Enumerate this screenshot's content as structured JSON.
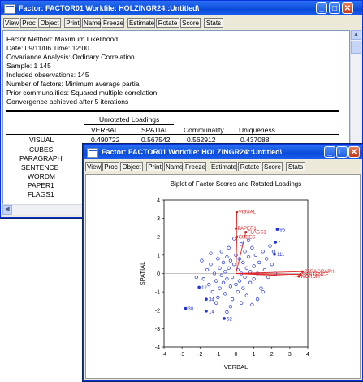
{
  "win1": {
    "title": "Factor: FACTOR01   Workfile: HOLZINGR24::Untitled\\",
    "toolbar": [
      "View",
      "Proc",
      "Object",
      "Print",
      "Name",
      "Freeze",
      "Estimate",
      "Rotate",
      "Score",
      "Stats"
    ],
    "lines": [
      "Factor Method: Maximum Likelihood",
      "Date: 09/11/06   Time: 12:00",
      "Covariance Analysis: Ordinary Correlation",
      "Sample: 1 145",
      "Included observations: 145",
      "Number of factors: Minimum average partial",
      "Prior communalities: Squared multiple correlation",
      "Convergence achieved after 5 iterations"
    ],
    "table": {
      "group_header": "Unrotated Loadings",
      "headers": [
        "VERBAL",
        "SPATIAL",
        "Communality",
        "Uniqueness"
      ],
      "rows": [
        {
          "name": "VISUAL",
          "values": [
            "0.490722",
            "0.567542",
            "0.562912",
            "0.437088"
          ]
        },
        {
          "name": "CUBES",
          "values": []
        },
        {
          "name": "PARAGRAPH",
          "values": []
        },
        {
          "name": "SENTENCE",
          "values": []
        },
        {
          "name": "WORDM",
          "values": []
        },
        {
          "name": "PAPER1",
          "values": []
        },
        {
          "name": "FLAGS1",
          "values": []
        }
      ]
    }
  },
  "win2": {
    "title": "Factor: FACTOR01   Workfile: HOLZINGR24::Untitled\\",
    "toolbar": [
      "View",
      "Proc",
      "Object",
      "Print",
      "Name",
      "Freeze",
      "Estimate",
      "Rotate",
      "Score",
      "Stats"
    ]
  },
  "chart_data": {
    "type": "scatter",
    "title": "Biplot of Factor Scores and Rotated Loadings",
    "xlabel": "VERBAL",
    "ylabel": "SPATIAL",
    "xlim": [
      -4,
      4
    ],
    "ylim": [
      -4,
      4
    ],
    "xticks": [
      "-4",
      "-3",
      "-2",
      "-1",
      "0",
      "1",
      "2",
      "3",
      "4"
    ],
    "yticks": [
      "4",
      "3",
      "2",
      "1",
      "0",
      "-1",
      "-2",
      "-3",
      "-4"
    ],
    "color": "#2233dd",
    "loading_color": "#dd2222",
    "loadings": [
      {
        "name": "VISUAL",
        "x": 0.05,
        "y": 3.35
      },
      {
        "name": "PAPER1",
        "x": 0.0,
        "y": 2.45
      },
      {
        "name": "FLAGS1",
        "x": 0.55,
        "y": 2.25
      },
      {
        "name": "CUBES",
        "x": 0.05,
        "y": 2.0
      },
      {
        "name": "PARAGRAPH",
        "x": 3.7,
        "y": 0.1
      },
      {
        "name": "SENTENCE",
        "x": 3.6,
        "y": -0.05
      },
      {
        "name": "WORDM",
        "x": 3.5,
        "y": -0.15
      }
    ],
    "labeled_points": [
      {
        "label": "96",
        "x": 2.3,
        "y": 2.4
      },
      {
        "label": "7",
        "x": 2.2,
        "y": 1.7
      },
      {
        "label": "111",
        "x": 2.15,
        "y": 1.05
      },
      {
        "label": "12",
        "x": -2.05,
        "y": -0.75
      },
      {
        "label": "34",
        "x": -1.65,
        "y": -1.4
      },
      {
        "label": "38",
        "x": -2.8,
        "y": -1.9
      },
      {
        "label": "14",
        "x": -1.65,
        "y": -2.05
      },
      {
        "label": "52",
        "x": -0.65,
        "y": -2.45
      }
    ],
    "points": [
      [
        -1.8,
        -0.3
      ],
      [
        -1.6,
        0.2
      ],
      [
        -1.5,
        -0.6
      ],
      [
        -1.4,
        0.5
      ],
      [
        -1.3,
        -1.0
      ],
      [
        -1.2,
        0.0
      ],
      [
        -1.1,
        -0.4
      ],
      [
        -1.0,
        0.8
      ],
      [
        -1.0,
        -1.3
      ],
      [
        -0.9,
        0.3
      ],
      [
        -0.9,
        -0.8
      ],
      [
        -0.8,
        1.2
      ],
      [
        -0.8,
        -0.1
      ],
      [
        -0.7,
        0.6
      ],
      [
        -0.7,
        -0.5
      ],
      [
        -0.6,
        -1.1
      ],
      [
        -0.6,
        0.1
      ],
      [
        -0.5,
        0.9
      ],
      [
        -0.5,
        -0.3
      ],
      [
        -0.4,
        1.4
      ],
      [
        -0.4,
        0.3
      ],
      [
        -0.3,
        -0.7
      ],
      [
        -0.3,
        0.7
      ],
      [
        -0.2,
        -0.2
      ],
      [
        -0.2,
        -1.4
      ],
      [
        -0.1,
        0.5
      ],
      [
        0.0,
        -0.6
      ],
      [
        0.0,
        1.0
      ],
      [
        0.1,
        0.2
      ],
      [
        0.1,
        -1.0
      ],
      [
        0.2,
        0.8
      ],
      [
        0.2,
        -0.4
      ],
      [
        0.3,
        1.6
      ],
      [
        0.3,
        0.0
      ],
      [
        0.4,
        -0.8
      ],
      [
        0.4,
        0.6
      ],
      [
        0.5,
        1.2
      ],
      [
        0.5,
        -0.2
      ],
      [
        0.6,
        0.3
      ],
      [
        0.6,
        -1.2
      ],
      [
        0.7,
        0.9
      ],
      [
        0.8,
        -0.5
      ],
      [
        0.8,
        0.1
      ],
      [
        0.9,
        1.4
      ],
      [
        1.0,
        0.4
      ],
      [
        1.0,
        -0.3
      ],
      [
        1.1,
        1.0
      ],
      [
        1.2,
        0.0
      ],
      [
        1.3,
        0.6
      ],
      [
        1.4,
        -0.8
      ],
      [
        1.5,
        1.2
      ],
      [
        1.6,
        0.2
      ],
      [
        1.7,
        0.8
      ],
      [
        1.8,
        -0.2
      ],
      [
        1.9,
        1.5
      ],
      [
        2.0,
        0.5
      ],
      [
        2.1,
        1.2
      ],
      [
        2.2,
        0.0
      ],
      [
        1.2,
        -1.4
      ],
      [
        0.3,
        -1.6
      ],
      [
        -0.3,
        -1.8
      ],
      [
        -1.1,
        -1.6
      ],
      [
        -0.5,
        -2.1
      ],
      [
        0.9,
        -1.7
      ],
      [
        -1.4,
        1.1
      ],
      [
        -1.9,
        0.7
      ],
      [
        -2.2,
        -0.2
      ],
      [
        1.5,
        -1.0
      ],
      [
        0.7,
        1.8
      ],
      [
        -0.1,
        1.9
      ]
    ]
  }
}
